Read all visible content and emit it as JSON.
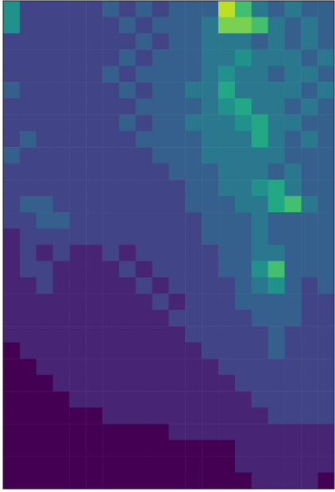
{
  "chart_data": {
    "type": "heatmap",
    "tick_labels": false,
    "zlim": [
      0,
      10
    ],
    "values": [
      [
        5,
        2,
        2,
        2,
        2,
        2,
        3,
        2,
        3,
        2,
        3,
        3,
        3,
        9,
        7,
        4,
        3,
        4,
        3,
        3
      ],
      [
        5,
        2,
        2,
        2,
        2,
        2,
        2,
        3,
        2,
        3,
        3,
        3,
        4,
        8,
        8,
        7,
        4,
        3,
        4,
        3
      ],
      [
        2,
        2,
        2,
        2,
        2,
        2,
        2,
        2,
        3,
        2,
        3,
        3,
        4,
        4,
        4,
        3,
        4,
        3,
        4,
        3
      ],
      [
        2,
        2,
        2,
        2,
        2,
        2,
        2,
        3,
        2,
        3,
        3,
        3,
        4,
        4,
        5,
        4,
        4,
        4,
        3,
        4
      ],
      [
        2,
        2,
        2,
        2,
        2,
        2,
        3,
        2,
        3,
        3,
        3,
        3,
        4,
        5,
        4,
        4,
        3,
        4,
        4,
        3
      ],
      [
        3,
        2,
        2,
        2,
        2,
        2,
        2,
        3,
        2,
        3,
        3,
        4,
        4,
        6,
        4,
        4,
        4,
        4,
        3,
        4
      ],
      [
        2,
        2,
        2,
        2,
        2,
        2,
        2,
        2,
        3,
        3,
        3,
        3,
        4,
        5,
        6,
        4,
        4,
        3,
        4,
        3
      ],
      [
        2,
        2,
        2,
        2,
        2,
        2,
        2,
        3,
        2,
        3,
        3,
        4,
        4,
        4,
        5,
        6,
        4,
        4,
        3,
        3
      ],
      [
        2,
        3,
        2,
        2,
        2,
        2,
        2,
        2,
        3,
        3,
        3,
        3,
        4,
        4,
        4,
        6,
        4,
        3,
        4,
        3
      ],
      [
        3,
        2,
        2,
        2,
        2,
        2,
        2,
        2,
        2,
        3,
        3,
        3,
        4,
        4,
        4,
        4,
        4,
        3,
        3,
        3
      ],
      [
        2,
        2,
        2,
        2,
        2,
        2,
        2,
        2,
        2,
        2,
        3,
        3,
        3,
        4,
        4,
        4,
        3,
        4,
        3,
        3
      ],
      [
        2,
        2,
        2,
        2,
        2,
        2,
        2,
        2,
        2,
        2,
        2,
        3,
        3,
        4,
        4,
        5,
        6,
        4,
        3,
        3
      ],
      [
        2,
        3,
        3,
        2,
        2,
        2,
        2,
        2,
        2,
        2,
        2,
        3,
        3,
        3,
        4,
        4,
        6,
        7,
        4,
        3
      ],
      [
        2,
        2,
        3,
        3,
        2,
        2,
        2,
        2,
        2,
        2,
        2,
        2,
        3,
        3,
        3,
        4,
        3,
        3,
        3,
        3
      ],
      [
        1,
        2,
        2,
        2,
        2,
        2,
        2,
        2,
        2,
        2,
        2,
        2,
        3,
        3,
        3,
        4,
        3,
        3,
        3,
        3
      ],
      [
        1,
        2,
        1,
        2,
        1,
        1,
        2,
        1,
        2,
        2,
        2,
        2,
        2,
        3,
        3,
        4,
        4,
        3,
        3,
        3
      ],
      [
        1,
        2,
        2,
        1,
        1,
        1,
        1,
        2,
        1,
        2,
        2,
        2,
        2,
        3,
        3,
        5,
        7,
        3,
        3,
        3
      ],
      [
        1,
        1,
        2,
        1,
        1,
        1,
        1,
        1,
        2,
        1,
        2,
        2,
        2,
        2,
        3,
        4,
        5,
        3,
        2,
        3
      ],
      [
        1,
        1,
        1,
        1,
        1,
        1,
        1,
        1,
        1,
        2,
        1,
        2,
        2,
        2,
        3,
        3,
        3,
        3,
        2,
        2
      ],
      [
        1,
        1,
        1,
        1,
        1,
        1,
        1,
        1,
        1,
        1,
        2,
        2,
        2,
        2,
        2,
        3,
        3,
        3,
        2,
        2
      ],
      [
        1,
        1,
        1,
        1,
        1,
        1,
        1,
        1,
        1,
        1,
        1,
        2,
        2,
        2,
        2,
        2,
        3,
        2,
        2,
        2
      ],
      [
        0,
        1,
        1,
        1,
        1,
        1,
        1,
        1,
        1,
        1,
        1,
        1,
        2,
        2,
        2,
        2,
        3,
        2,
        2,
        2
      ],
      [
        0,
        0,
        1,
        1,
        1,
        1,
        1,
        1,
        1,
        1,
        1,
        1,
        1,
        2,
        2,
        2,
        2,
        2,
        2,
        2
      ],
      [
        0,
        0,
        0,
        1,
        1,
        1,
        1,
        1,
        1,
        1,
        1,
        1,
        1,
        1,
        2,
        2,
        2,
        2,
        2,
        2
      ],
      [
        0,
        0,
        0,
        0,
        1,
        1,
        1,
        1,
        1,
        1,
        1,
        1,
        1,
        1,
        1,
        2,
        2,
        2,
        2,
        2
      ],
      [
        0,
        0,
        0,
        0,
        0,
        0,
        1,
        1,
        1,
        1,
        1,
        1,
        1,
        1,
        1,
        1,
        2,
        2,
        2,
        2
      ],
      [
        0,
        0,
        0,
        0,
        0,
        0,
        0,
        0,
        0,
        0,
        1,
        1,
        1,
        1,
        1,
        1,
        1,
        1,
        1,
        1
      ],
      [
        0,
        0,
        0,
        0,
        0,
        0,
        0,
        0,
        0,
        0,
        0,
        0,
        0,
        0,
        1,
        1,
        1,
        1,
        1,
        1
      ],
      [
        0,
        0,
        0,
        0,
        0,
        0,
        0,
        0,
        0,
        0,
        0,
        0,
        0,
        0,
        1,
        1,
        1,
        1,
        1,
        1
      ],
      [
        0,
        0,
        0,
        0,
        0,
        0,
        0,
        0,
        0,
        0,
        0,
        0,
        0,
        0,
        0,
        1,
        1,
        1,
        1,
        0
      ]
    ]
  }
}
